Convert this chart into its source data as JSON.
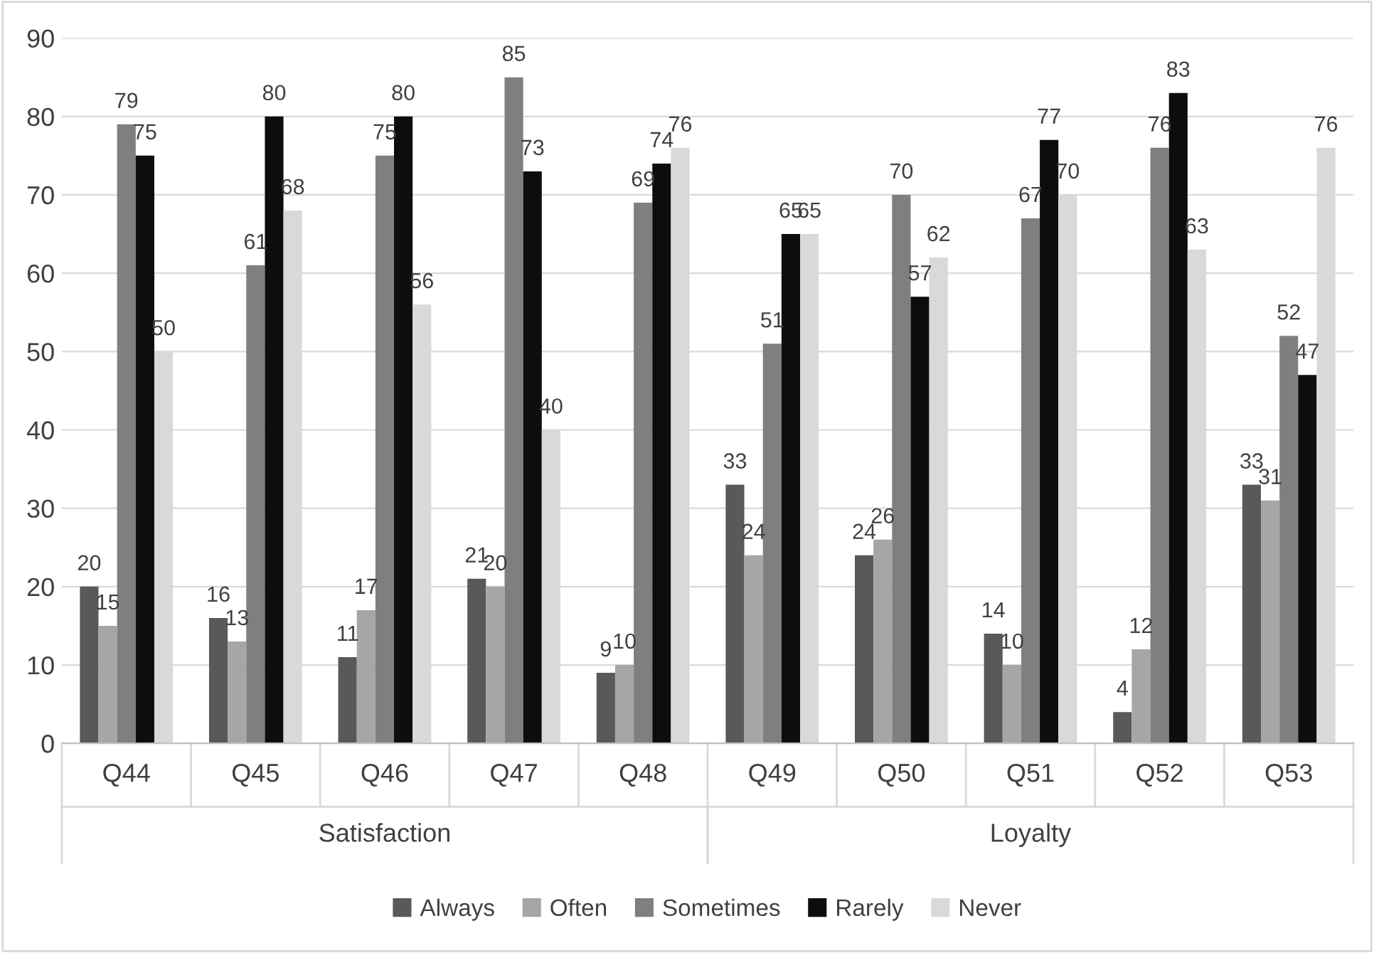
{
  "chart_data": {
    "type": "bar",
    "categories": [
      "Q44",
      "Q45",
      "Q46",
      "Q47",
      "Q48",
      "Q49",
      "Q50",
      "Q51",
      "Q52",
      "Q53"
    ],
    "series": [
      {
        "name": "Always",
        "color": "#595959",
        "values": [
          20,
          16,
          11,
          21,
          9,
          33,
          24,
          14,
          4,
          33
        ]
      },
      {
        "name": "Often",
        "color": "#a6a6a6",
        "values": [
          15,
          13,
          17,
          20,
          10,
          24,
          26,
          10,
          12,
          31
        ]
      },
      {
        "name": "Sometimes",
        "color": "#7f7f7f",
        "values": [
          79,
          61,
          75,
          85,
          69,
          51,
          70,
          67,
          76,
          52
        ]
      },
      {
        "name": "Rarely",
        "color": "#0d0d0d",
        "values": [
          75,
          80,
          80,
          73,
          74,
          65,
          57,
          77,
          83,
          47
        ]
      },
      {
        "name": "Never",
        "color": "#d9d9d9",
        "values": [
          50,
          68,
          56,
          40,
          76,
          65,
          62,
          70,
          63,
          76
        ]
      }
    ],
    "annotations": [
      "Satisfaction",
      "Loyalty"
    ],
    "ylim": [
      0,
      90
    ],
    "yticks": [
      0,
      10,
      20,
      30,
      40,
      50,
      60,
      70,
      80,
      90
    ],
    "grid": "y",
    "legend": "bottom",
    "data_labels": true
  }
}
